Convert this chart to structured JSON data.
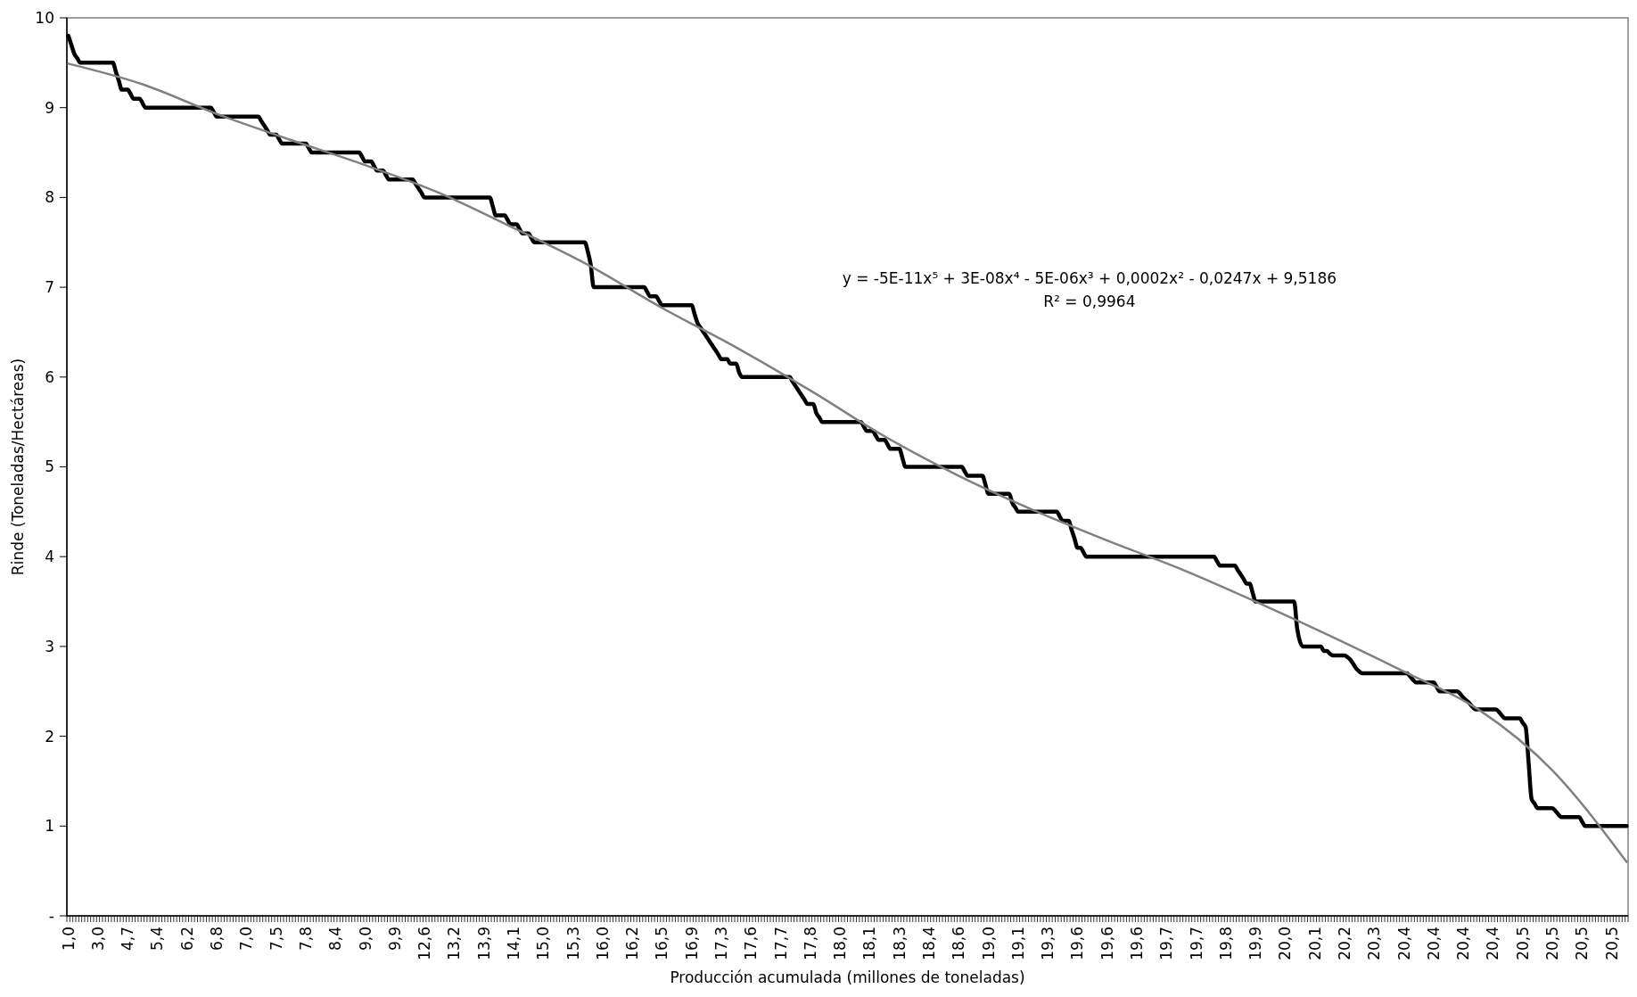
{
  "chart_data": {
    "type": "line",
    "xlabel": "Producción acumulada (millones de toneladas)",
    "ylabel": "Rinde (Toneladas/Hectáreas)",
    "annotations": [
      "y = -5E-11x⁵ + 3E-08x⁴ - 5E-06x³ + 0,0002x² - 0,0247x + 9,5186",
      "R² = 0,9964"
    ],
    "ylim": [
      0,
      10
    ],
    "yticks": [
      {
        "value": 0,
        "label": "-"
      },
      1,
      2,
      3,
      4,
      5,
      6,
      7,
      8,
      9,
      10
    ],
    "categories": [
      "1,0",
      null,
      null,
      null,
      null,
      null,
      null,
      null,
      null,
      null,
      "3,0",
      null,
      null,
      null,
      null,
      null,
      null,
      null,
      null,
      null,
      "4,7",
      null,
      null,
      null,
      null,
      null,
      null,
      null,
      null,
      null,
      "5,4",
      null,
      null,
      null,
      null,
      null,
      null,
      null,
      null,
      null,
      "6,2",
      null,
      null,
      null,
      null,
      null,
      null,
      null,
      null,
      null,
      "6,8",
      null,
      null,
      null,
      null,
      null,
      null,
      null,
      null,
      null,
      "7,0",
      null,
      null,
      null,
      null,
      null,
      null,
      null,
      null,
      null,
      "7,5",
      null,
      null,
      null,
      null,
      null,
      null,
      null,
      null,
      null,
      "7,8",
      null,
      null,
      null,
      null,
      null,
      null,
      null,
      null,
      null,
      "8,4",
      null,
      null,
      null,
      null,
      null,
      null,
      null,
      null,
      null,
      "9,0",
      null,
      null,
      null,
      null,
      null,
      null,
      null,
      null,
      null,
      "9,9",
      null,
      null,
      null,
      null,
      null,
      null,
      null,
      null,
      null,
      "12,6",
      null,
      null,
      null,
      null,
      null,
      null,
      null,
      null,
      null,
      "13,2",
      null,
      null,
      null,
      null,
      null,
      null,
      null,
      null,
      null,
      "13,9",
      null,
      null,
      null,
      null,
      null,
      null,
      null,
      null,
      null,
      "14,1",
      null,
      null,
      null,
      null,
      null,
      null,
      null,
      null,
      null,
      "15,0",
      null,
      null,
      null,
      null,
      null,
      null,
      null,
      null,
      null,
      "15,3",
      null,
      null,
      null,
      null,
      null,
      null,
      null,
      null,
      null,
      "16,0",
      null,
      null,
      null,
      null,
      null,
      null,
      null,
      null,
      null,
      "16,2",
      null,
      null,
      null,
      null,
      null,
      null,
      null,
      null,
      null,
      "16,5",
      null,
      null,
      null,
      null,
      null,
      null,
      null,
      null,
      null,
      "16,9",
      null,
      null,
      null,
      null,
      null,
      null,
      null,
      null,
      null,
      "17,3",
      null,
      null,
      null,
      null,
      null,
      null,
      null,
      null,
      null,
      "17,6",
      null,
      null,
      null,
      null,
      null,
      null,
      null,
      null,
      null,
      "17,7",
      null,
      null,
      null,
      null,
      null,
      null,
      null,
      null,
      null,
      "17,8",
      null,
      null,
      null,
      null,
      null,
      null,
      null,
      null,
      null,
      "18,0",
      null,
      null,
      null,
      null,
      null,
      null,
      null,
      null,
      null,
      "18,1",
      null,
      null,
      null,
      null,
      null,
      null,
      null,
      null,
      null,
      "18,3",
      null,
      null,
      null,
      null,
      null,
      null,
      null,
      null,
      null,
      "18,4",
      null,
      null,
      null,
      null,
      null,
      null,
      null,
      null,
      null,
      "18,6",
      null,
      null,
      null,
      null,
      null,
      null,
      null,
      null,
      null,
      "19,0",
      null,
      null,
      null,
      null,
      null,
      null,
      null,
      null,
      null,
      "19,1",
      null,
      null,
      null,
      null,
      null,
      null,
      null,
      null,
      null,
      "19,3",
      null,
      null,
      null,
      null,
      null,
      null,
      null,
      null,
      null,
      "19,6",
      null,
      null,
      null,
      null,
      null,
      null,
      null,
      null,
      null,
      "19,6",
      null,
      null,
      null,
      null,
      null,
      null,
      null,
      null,
      null,
      "19,6",
      null,
      null,
      null,
      null,
      null,
      null,
      null,
      null,
      null,
      "19,7",
      null,
      null,
      null,
      null,
      null,
      null,
      null,
      null,
      null,
      "19,7",
      null,
      null,
      null,
      null,
      null,
      null,
      null,
      null,
      null,
      "19,8",
      null,
      null,
      null,
      null,
      null,
      null,
      null,
      null,
      null,
      "19,9",
      null,
      null,
      null,
      null,
      null,
      null,
      null,
      null,
      null,
      "20,0",
      null,
      null,
      null,
      null,
      null,
      null,
      null,
      null,
      null,
      "20,1",
      null,
      null,
      null,
      null,
      null,
      null,
      null,
      null,
      null,
      "20,2",
      null,
      null,
      null,
      null,
      null,
      null,
      null,
      null,
      null,
      "20,3",
      null,
      null,
      null,
      null,
      null,
      null,
      null,
      null,
      null,
      "20,4",
      null,
      null,
      null,
      null,
      null,
      null,
      null,
      null,
      null,
      "20,4",
      null,
      null,
      null,
      null,
      null,
      null,
      null,
      null,
      null,
      "20,4",
      null,
      null,
      null,
      null,
      null,
      null,
      null,
      null,
      null,
      "20,4",
      null,
      null,
      null,
      null,
      null,
      null,
      null,
      null,
      null,
      "20,5",
      null,
      null,
      null,
      null,
      null,
      null,
      null,
      null,
      null,
      "20,5",
      null,
      null,
      null,
      null,
      null,
      null,
      null,
      null,
      null,
      "20,5",
      null,
      null,
      null,
      null,
      null,
      null,
      null,
      null,
      null,
      "20,5",
      null,
      null,
      null,
      null,
      null
    ],
    "series": [
      {
        "color": "#000000",
        "values": [
          9.8,
          9.7,
          9.6,
          9.55,
          9.5,
          9.5,
          9.5,
          9.5,
          9.5,
          9.5,
          9.5,
          9.5,
          9.5,
          9.5,
          9.5,
          9.5,
          9.4,
          9.3,
          9.2,
          9.2,
          9.2,
          9.15,
          9.1,
          9.1,
          9.1,
          9.05,
          9,
          9,
          9,
          9,
          9,
          9,
          9,
          9,
          9,
          9,
          9,
          9,
          9,
          9,
          9,
          9,
          9,
          9,
          9,
          9,
          9,
          9,
          9,
          8.95,
          8.9,
          8.9,
          8.9,
          8.9,
          8.9,
          8.9,
          8.9,
          8.9,
          8.9,
          8.9,
          8.9,
          8.9,
          8.9,
          8.9,
          8.9,
          8.85,
          8.8,
          8.75,
          8.7,
          8.7,
          8.7,
          8.65,
          8.6,
          8.6,
          8.6,
          8.6,
          8.6,
          8.6,
          8.6,
          8.6,
          8.6,
          8.55,
          8.5,
          8.5,
          8.5,
          8.5,
          8.5,
          8.5,
          8.5,
          8.5,
          8.5,
          8.5,
          8.5,
          8.5,
          8.5,
          8.5,
          8.5,
          8.5,
          8.5,
          8.45,
          8.4,
          8.4,
          8.4,
          8.35,
          8.3,
          8.3,
          8.3,
          8.25,
          8.2,
          8.2,
          8.2,
          8.2,
          8.2,
          8.2,
          8.2,
          8.2,
          8.2,
          8.15,
          8.1,
          8.05,
          8,
          8,
          8,
          8,
          8,
          8,
          8,
          8,
          8,
          8,
          8,
          8,
          8,
          8,
          8,
          8,
          8,
          8,
          8,
          8,
          8,
          8,
          8,
          7.9,
          7.8,
          7.8,
          7.8,
          7.8,
          7.75,
          7.7,
          7.7,
          7.7,
          7.65,
          7.6,
          7.6,
          7.6,
          7.55,
          7.5,
          7.5,
          7.5,
          7.5,
          7.5,
          7.5,
          7.5,
          7.5,
          7.5,
          7.5,
          7.5,
          7.5,
          7.5,
          7.5,
          7.5,
          7.5,
          7.5,
          7.5,
          7.4,
          7.25,
          7,
          7,
          7,
          7,
          7,
          7,
          7,
          7,
          7,
          7,
          7,
          7,
          7,
          7,
          7,
          7,
          7,
          7,
          6.95,
          6.9,
          6.9,
          6.9,
          6.85,
          6.8,
          6.8,
          6.8,
          6.8,
          6.8,
          6.8,
          6.8,
          6.8,
          6.8,
          6.8,
          6.8,
          6.7,
          6.6,
          6.55,
          6.5,
          6.45,
          6.4,
          6.35,
          6.3,
          6.25,
          6.2,
          6.2,
          6.2,
          6.15,
          6.15,
          6.15,
          6.05,
          6,
          6,
          6,
          6,
          6,
          6,
          6,
          6,
          6,
          6,
          6,
          6,
          6,
          6,
          6,
          6,
          6,
          5.95,
          5.9,
          5.85,
          5.8,
          5.75,
          5.7,
          5.7,
          5.7,
          5.6,
          5.55,
          5.5,
          5.5,
          5.5,
          5.5,
          5.5,
          5.5,
          5.5,
          5.5,
          5.5,
          5.5,
          5.5,
          5.5,
          5.5,
          5.5,
          5.45,
          5.4,
          5.4,
          5.4,
          5.35,
          5.3,
          5.3,
          5.3,
          5.25,
          5.2,
          5.2,
          5.2,
          5.2,
          5.1,
          5,
          5,
          5,
          5,
          5,
          5,
          5,
          5,
          5,
          5,
          5,
          5,
          5,
          5,
          5,
          5,
          5,
          5,
          5,
          5,
          4.95,
          4.9,
          4.9,
          4.9,
          4.9,
          4.9,
          4.9,
          4.8,
          4.7,
          4.7,
          4.7,
          4.7,
          4.7,
          4.7,
          4.7,
          4.7,
          4.6,
          4.55,
          4.5,
          4.5,
          4.5,
          4.5,
          4.5,
          4.5,
          4.5,
          4.5,
          4.5,
          4.5,
          4.5,
          4.5,
          4.5,
          4.5,
          4.45,
          4.4,
          4.4,
          4.4,
          4.3,
          4.2,
          4.1,
          4.1,
          4.05,
          4,
          4,
          4,
          4,
          4,
          4,
          4,
          4,
          4,
          4,
          4,
          4,
          4,
          4,
          4,
          4,
          4,
          4,
          4,
          4,
          4,
          4,
          4,
          4,
          4,
          4,
          4,
          4,
          4,
          4,
          4,
          4,
          4,
          4,
          4,
          4,
          4,
          4,
          4,
          4,
          4,
          4,
          4,
          4,
          3.95,
          3.9,
          3.9,
          3.9,
          3.9,
          3.9,
          3.9,
          3.85,
          3.8,
          3.75,
          3.7,
          3.7,
          3.6,
          3.5,
          3.5,
          3.5,
          3.5,
          3.5,
          3.5,
          3.5,
          3.5,
          3.5,
          3.5,
          3.5,
          3.5,
          3.5,
          3.5,
          3.2,
          3.05,
          3,
          3,
          3,
          3,
          3,
          3,
          3,
          2.95,
          2.95,
          2.92,
          2.9,
          2.9,
          2.9,
          2.9,
          2.9,
          2.88,
          2.85,
          2.8,
          2.75,
          2.72,
          2.7,
          2.7,
          2.7,
          2.7,
          2.7,
          2.7,
          2.7,
          2.7,
          2.7,
          2.7,
          2.7,
          2.7,
          2.7,
          2.7,
          2.7,
          2.7,
          2.67,
          2.63,
          2.6,
          2.6,
          2.6,
          2.6,
          2.6,
          2.6,
          2.6,
          2.55,
          2.5,
          2.5,
          2.5,
          2.5,
          2.5,
          2.5,
          2.5,
          2.47,
          2.43,
          2.4,
          2.37,
          2.33,
          2.3,
          2.3,
          2.3,
          2.3,
          2.3,
          2.3,
          2.3,
          2.3,
          2.27,
          2.23,
          2.2,
          2.2,
          2.2,
          2.2,
          2.2,
          2.2,
          2.15,
          2.1,
          1.7,
          1.3,
          1.25,
          1.2,
          1.2,
          1.2,
          1.2,
          1.2,
          1.2,
          1.17,
          1.13,
          1.1,
          1.1,
          1.1,
          1.1,
          1.1,
          1.1,
          1.1,
          1.05,
          1,
          1,
          1,
          1,
          1,
          1,
          1,
          1,
          1,
          1,
          1,
          1,
          1,
          1,
          1
        ]
      },
      {
        "type": "line",
        "color": "#808080",
        "values": [
          9.49,
          null,
          null,
          null,
          null,
          null,
          null,
          null,
          null,
          null,
          null,
          null,
          null,
          null,
          null,
          null,
          null,
          null,
          null,
          null,
          null,
          null,
          null,
          null,
          null,
          9.26,
          null,
          null,
          null,
          null,
          null,
          null,
          null,
          null,
          null,
          null,
          null,
          null,
          null,
          null,
          null,
          null,
          null,
          null,
          null,
          null,
          null,
          null,
          null,
          null,
          8.93,
          null,
          null,
          null,
          null,
          null,
          null,
          null,
          null,
          null,
          null,
          null,
          null,
          null,
          null,
          null,
          null,
          null,
          null,
          null,
          null,
          null,
          null,
          null,
          null,
          8.64,
          null,
          null,
          null,
          null,
          null,
          null,
          null,
          null,
          null,
          null,
          null,
          null,
          null,
          null,
          null,
          null,
          null,
          null,
          null,
          null,
          null,
          null,
          null,
          null,
          8.36,
          null,
          null,
          null,
          null,
          null,
          null,
          null,
          null,
          null,
          null,
          null,
          null,
          null,
          null,
          null,
          null,
          null,
          null,
          null,
          null,
          null,
          null,
          null,
          null,
          8.05,
          null,
          null,
          null,
          null,
          null,
          null,
          null,
          null,
          null,
          null,
          null,
          null,
          null,
          null,
          null,
          null,
          null,
          null,
          null,
          null,
          null,
          null,
          null,
          null,
          7.66,
          null,
          null,
          null,
          null,
          null,
          null,
          null,
          null,
          null,
          null,
          null,
          null,
          null,
          null,
          null,
          null,
          null,
          null,
          null,
          null,
          null,
          null,
          null,
          null,
          7.25,
          null,
          null,
          null,
          null,
          null,
          null,
          null,
          null,
          null,
          null,
          null,
          null,
          null,
          null,
          null,
          null,
          null,
          null,
          null,
          null,
          null,
          null,
          null,
          null,
          6.77,
          null,
          null,
          null,
          null,
          null,
          null,
          null,
          null,
          null,
          null,
          null,
          null,
          null,
          null,
          null,
          null,
          null,
          null,
          null,
          null,
          null,
          null,
          null,
          null,
          6.33,
          null,
          null,
          null,
          null,
          null,
          null,
          null,
          null,
          null,
          null,
          null,
          null,
          null,
          null,
          null,
          null,
          null,
          null,
          null,
          null,
          null,
          null,
          null,
          null,
          5.85,
          null,
          null,
          null,
          null,
          null,
          null,
          null,
          null,
          null,
          null,
          null,
          null,
          null,
          null,
          null,
          null,
          null,
          null,
          null,
          null,
          null,
          null,
          null,
          null,
          5.34,
          null,
          null,
          null,
          null,
          null,
          null,
          null,
          null,
          null,
          null,
          null,
          null,
          null,
          null,
          null,
          null,
          null,
          null,
          null,
          null,
          null,
          null,
          null,
          null,
          4.9,
          null,
          null,
          null,
          null,
          null,
          null,
          null,
          null,
          null,
          null,
          null,
          null,
          null,
          null,
          null,
          null,
          null,
          null,
          null,
          null,
          null,
          null,
          null,
          null,
          4.52,
          null,
          null,
          null,
          null,
          null,
          null,
          null,
          null,
          null,
          null,
          null,
          null,
          null,
          null,
          null,
          null,
          null,
          null,
          null,
          null,
          null,
          null,
          null,
          null,
          4.18,
          null,
          null,
          null,
          null,
          null,
          null,
          null,
          null,
          null,
          null,
          null,
          null,
          null,
          null,
          null,
          null,
          null,
          null,
          null,
          null,
          null,
          null,
          null,
          null,
          3.86,
          null,
          null,
          null,
          null,
          null,
          null,
          null,
          null,
          null,
          null,
          null,
          null,
          null,
          null,
          null,
          null,
          null,
          null,
          null,
          null,
          null,
          null,
          null,
          null,
          3.5,
          null,
          null,
          null,
          null,
          null,
          null,
          null,
          null,
          null,
          null,
          null,
          null,
          null,
          null,
          null,
          null,
          null,
          null,
          null,
          null,
          null,
          null,
          null,
          null,
          3.12,
          null,
          null,
          null,
          null,
          null,
          null,
          null,
          null,
          null,
          null,
          null,
          null,
          null,
          null,
          null,
          null,
          null,
          null,
          null,
          null,
          null,
          null,
          null,
          null,
          2.72,
          null,
          null,
          null,
          null,
          null,
          null,
          null,
          null,
          null,
          null,
          null,
          null,
          null,
          null,
          null,
          null,
          null,
          null,
          null,
          null,
          null,
          null,
          null,
          null,
          2.3,
          null,
          null,
          null,
          null,
          null,
          null,
          null,
          null,
          null,
          null,
          null,
          null,
          null,
          null,
          null,
          null,
          null,
          null,
          null,
          null,
          null,
          null,
          null,
          null,
          1.62,
          null,
          null,
          null,
          null,
          null,
          null,
          null,
          null,
          null,
          null,
          null,
          null,
          null,
          null,
          null,
          null,
          null,
          null,
          null,
          null,
          null,
          null,
          null,
          null,
          0.6
        ]
      }
    ]
  }
}
